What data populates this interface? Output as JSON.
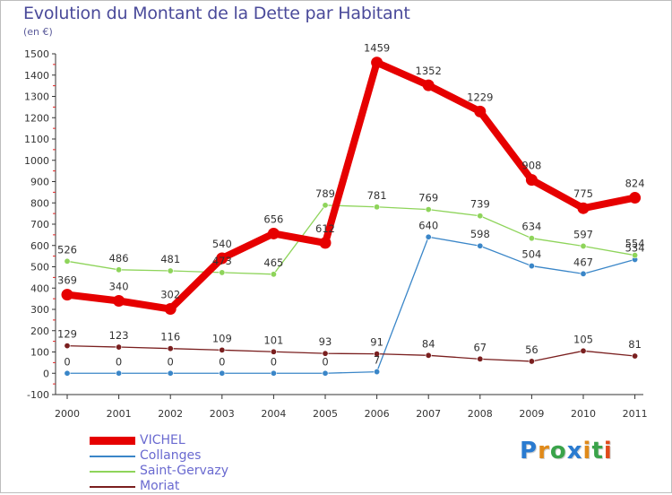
{
  "header": {
    "title": "Evolution du Montant de la Dette par Habitant",
    "subtitle": "(en €)"
  },
  "logo": {
    "text": "Proxiti",
    "letters": [
      {
        "ch": "P",
        "color": "#2a7bd0"
      },
      {
        "ch": "r",
        "color": "#e08a1a"
      },
      {
        "ch": "o",
        "color": "#3aa34a"
      },
      {
        "ch": "x",
        "color": "#2a7bd0"
      },
      {
        "ch": "i",
        "color": "#e08a1a"
      },
      {
        "ch": "t",
        "color": "#3aa34a"
      },
      {
        "ch": "i",
        "color": "#e04a1a"
      }
    ]
  },
  "chart_data": {
    "type": "line",
    "title": "Evolution du Montant de la Dette par Habitant",
    "subtitle": "(en €)",
    "x": [
      "2000",
      "2001",
      "2002",
      "2003",
      "2004",
      "2005",
      "2006",
      "2007",
      "2008",
      "2009",
      "2010",
      "2011"
    ],
    "yticks": [
      -100,
      0,
      100,
      200,
      300,
      400,
      500,
      600,
      700,
      800,
      900,
      1000,
      1100,
      1200,
      1300,
      1400,
      1500
    ],
    "ylim": [
      -100,
      1500
    ],
    "grid": false,
    "legend_position": "bottom-left",
    "series": [
      {
        "name": "VICHEL",
        "color": "#e60000",
        "values": [
          369,
          340,
          302,
          540,
          656,
          612,
          1459,
          1352,
          1229,
          908,
          775,
          824
        ],
        "labels": [
          "369",
          "340",
          "302",
          "540",
          "656",
          "612",
          "1459",
          "1352",
          "1229",
          "908",
          "775",
          "824"
        ]
      },
      {
        "name": "Collanges",
        "color": "#3a86c8",
        "values": [
          0,
          0,
          0,
          0,
          0,
          0,
          7,
          640,
          598,
          504,
          467,
          534
        ],
        "labels": [
          "0",
          "0",
          "0",
          "0",
          "0",
          "0",
          "7",
          "640",
          "598",
          "504",
          "467",
          "534"
        ]
      },
      {
        "name": "Saint-Gervazy",
        "color": "#8ed45a",
        "values": [
          526,
          486,
          481,
          473,
          465,
          789,
          781,
          769,
          739,
          634,
          597,
          554
        ],
        "labels": [
          "526",
          "486",
          "481",
          "473",
          "465",
          "789",
          "781",
          "769",
          "739",
          "634",
          "597",
          "554"
        ]
      },
      {
        "name": "Moriat",
        "color": "#7a1f1f",
        "values": [
          129,
          123,
          116,
          109,
          101,
          93,
          91,
          84,
          67,
          56,
          105,
          81
        ],
        "labels": [
          "129",
          "123",
          "116",
          "109",
          "101",
          "93",
          "91",
          "84",
          "67",
          "56",
          "105",
          "81"
        ]
      }
    ]
  }
}
